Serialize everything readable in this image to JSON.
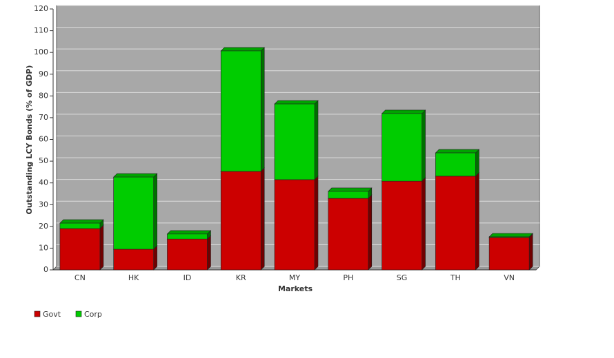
{
  "chart_data": {
    "type": "bar",
    "stacked": true,
    "x_label": "Markets",
    "y_label": "Outstanding LCY Bonds (% of GDP)",
    "categories": [
      "CN",
      "HK",
      "ID",
      "KR",
      "MY",
      "PH",
      "SG",
      "TH",
      "VN"
    ],
    "series": [
      {
        "name": "Govt",
        "color": "#cc0000",
        "values": [
          19.0,
          9.5,
          14.2,
          45.3,
          41.5,
          32.9,
          40.8,
          43.1,
          14.9
        ]
      },
      {
        "name": "Corp",
        "color": "#00cc00",
        "values": [
          2.5,
          33.2,
          2.3,
          55.4,
          34.8,
          3.2,
          31.1,
          10.7,
          0.3
        ]
      }
    ],
    "ylim": [
      0,
      120
    ],
    "yticks": [
      0,
      10,
      20,
      30,
      40,
      50,
      60,
      70,
      80,
      90,
      100,
      110,
      120
    ],
    "grid": true,
    "legend": "bottom-left"
  }
}
